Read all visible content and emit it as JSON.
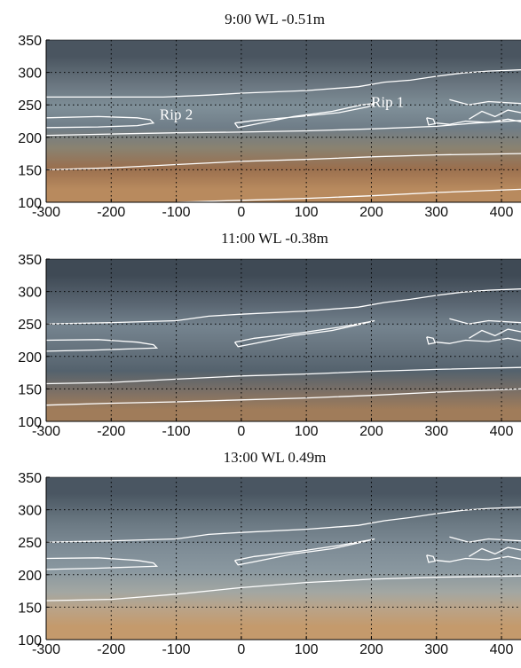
{
  "figure": {
    "background": "#ffffff",
    "contour_color": "#ffffff",
    "grid_color": "#000000"
  },
  "chart_data": [
    {
      "type": "image-contour",
      "title": "9:00  WL -0.51m",
      "xlabel": "",
      "ylabel": "",
      "xlim": [
        -300,
        430
      ],
      "ylim": [
        100,
        350
      ],
      "xticks": [
        -300,
        -200,
        -100,
        0,
        100,
        200,
        300,
        400
      ],
      "yticks": [
        100,
        150,
        200,
        250,
        300,
        350
      ],
      "grid": true,
      "annotations": [
        {
          "text": "Rip 2",
          "x": -100,
          "y": 228
        },
        {
          "text": "Rip 1",
          "x": 225,
          "y": 247
        }
      ],
      "photo_bands": [
        {
          "y0": 350,
          "y1": 300,
          "color": "#4a5560"
        },
        {
          "y0": 300,
          "y1": 262,
          "color": "#6a7680"
        },
        {
          "y0": 262,
          "y1": 230,
          "color": "#7f8f98"
        },
        {
          "y0": 230,
          "y1": 200,
          "color": "#6f7d88"
        },
        {
          "y0": 200,
          "y1": 165,
          "color": "#8a8270"
        },
        {
          "y0": 165,
          "y1": 140,
          "color": "#9a6f4e"
        },
        {
          "y0": 140,
          "y1": 100,
          "color": "#b88a5e"
        }
      ],
      "contours": [
        {
          "points": [
            [
              -300,
              262
            ],
            [
              -200,
              262
            ],
            [
              -120,
              262
            ],
            [
              -50,
              265
            ],
            [
              0,
              268
            ],
            [
              100,
              272
            ],
            [
              180,
              278
            ],
            [
              220,
              285
            ],
            [
              260,
              288
            ],
            [
              300,
              294
            ],
            [
              340,
              299
            ],
            [
              380,
              302
            ],
            [
              430,
              304
            ]
          ]
        },
        {
          "points": [
            [
              -300,
              230
            ],
            [
              -220,
              232
            ],
            [
              -160,
              230
            ],
            [
              -140,
              227
            ],
            [
              -135,
              222
            ],
            [
              -160,
              218
            ],
            [
              -220,
              216
            ],
            [
              -300,
              215
            ]
          ]
        },
        {
          "points": [
            [
              -10,
              222
            ],
            [
              20,
              226
            ],
            [
              90,
              232
            ],
            [
              150,
              238
            ],
            [
              195,
              247
            ],
            [
              205,
              252
            ],
            [
              185,
              250
            ],
            [
              140,
              240
            ],
            [
              80,
              232
            ],
            [
              20,
              220
            ],
            [
              -5,
              215
            ],
            [
              -10,
              222
            ]
          ]
        },
        {
          "points": [
            [
              -300,
              203
            ],
            [
              -200,
              205
            ],
            [
              -100,
              207
            ],
            [
              0,
              208
            ],
            [
              100,
              210
            ],
            [
              200,
              213
            ],
            [
              300,
              217
            ],
            [
              360,
              222
            ],
            [
              430,
              226
            ]
          ]
        },
        {
          "points": [
            [
              -300,
              150
            ],
            [
              -200,
              153
            ],
            [
              -100,
              158
            ],
            [
              0,
              163
            ],
            [
              100,
              166
            ],
            [
              200,
              170
            ],
            [
              300,
              173
            ],
            [
              430,
              175
            ]
          ]
        },
        {
          "points": [
            [
              -100,
              100
            ],
            [
              0,
              103
            ],
            [
              100,
              106
            ],
            [
              200,
              110
            ],
            [
              300,
              115
            ],
            [
              430,
              120
            ]
          ]
        },
        {
          "points": [
            [
              320,
              258
            ],
            [
              350,
              250
            ],
            [
              380,
              255
            ],
            [
              430,
              252
            ]
          ]
        },
        {
          "points": [
            [
              350,
              228
            ],
            [
              370,
              240
            ],
            [
              390,
              232
            ],
            [
              410,
              242
            ],
            [
              430,
              238
            ]
          ]
        },
        {
          "points": [
            [
              300,
              222
            ],
            [
              320,
              220
            ],
            [
              345,
              225
            ],
            [
              380,
              223
            ],
            [
              410,
              228
            ],
            [
              430,
              224
            ]
          ]
        },
        {
          "points": [
            [
              285,
              230
            ],
            [
              295,
              228
            ],
            [
              298,
              221
            ],
            [
              288,
              219
            ],
            [
              285,
              230
            ]
          ]
        }
      ]
    },
    {
      "type": "image-contour",
      "title": "11:00  WL -0.38m",
      "xlabel": "",
      "ylabel": "",
      "xlim": [
        -300,
        430
      ],
      "ylim": [
        100,
        350
      ],
      "xticks": [
        -300,
        -200,
        -100,
        0,
        100,
        200,
        300,
        400
      ],
      "yticks": [
        100,
        150,
        200,
        250,
        300,
        350
      ],
      "grid": true,
      "annotations": [],
      "photo_bands": [
        {
          "y0": 350,
          "y1": 300,
          "color": "#3f4a55"
        },
        {
          "y0": 300,
          "y1": 262,
          "color": "#5a6672"
        },
        {
          "y0": 262,
          "y1": 228,
          "color": "#74838e"
        },
        {
          "y0": 228,
          "y1": 195,
          "color": "#66737e"
        },
        {
          "y0": 195,
          "y1": 160,
          "color": "#54626d"
        },
        {
          "y0": 160,
          "y1": 135,
          "color": "#7a6f66"
        },
        {
          "y0": 135,
          "y1": 100,
          "color": "#a07c5a"
        }
      ],
      "contours": [
        {
          "points": [
            [
              -300,
              250
            ],
            [
              -200,
              252
            ],
            [
              -100,
              255
            ],
            [
              -50,
              262
            ],
            [
              0,
              265
            ],
            [
              100,
              270
            ],
            [
              180,
              276
            ],
            [
              220,
              283
            ],
            [
              260,
              288
            ],
            [
              300,
              294
            ],
            [
              340,
              299
            ],
            [
              380,
              302
            ],
            [
              430,
              304
            ]
          ]
        },
        {
          "points": [
            [
              -300,
              225
            ],
            [
              -220,
              226
            ],
            [
              -160,
              222
            ],
            [
              -135,
              218
            ],
            [
              -130,
              213
            ],
            [
              -160,
              212
            ],
            [
              -220,
              210
            ],
            [
              -300,
              208
            ]
          ]
        },
        {
          "points": [
            [
              -10,
              222
            ],
            [
              20,
              228
            ],
            [
              90,
              236
            ],
            [
              150,
              245
            ],
            [
              195,
              253
            ],
            [
              205,
              255
            ],
            [
              185,
              250
            ],
            [
              140,
              240
            ],
            [
              80,
              232
            ],
            [
              20,
              220
            ],
            [
              -5,
              215
            ],
            [
              -10,
              222
            ]
          ]
        },
        {
          "points": [
            [
              -300,
              158
            ],
            [
              -200,
              160
            ],
            [
              -100,
              165
            ],
            [
              0,
              170
            ],
            [
              100,
              173
            ],
            [
              200,
              177
            ],
            [
              300,
              180
            ],
            [
              430,
              183
            ]
          ]
        },
        {
          "points": [
            [
              -300,
              125
            ],
            [
              -200,
              128
            ],
            [
              -100,
              130
            ],
            [
              0,
              133
            ],
            [
              100,
              136
            ],
            [
              200,
              140
            ],
            [
              300,
              145
            ],
            [
              430,
              150
            ]
          ]
        },
        {
          "points": [
            [
              320,
              258
            ],
            [
              350,
              250
            ],
            [
              380,
              255
            ],
            [
              430,
              252
            ]
          ]
        },
        {
          "points": [
            [
              350,
              228
            ],
            [
              370,
              240
            ],
            [
              390,
              232
            ],
            [
              410,
              242
            ],
            [
              430,
              238
            ]
          ]
        },
        {
          "points": [
            [
              300,
              222
            ],
            [
              320,
              220
            ],
            [
              345,
              225
            ],
            [
              380,
              223
            ],
            [
              410,
              228
            ],
            [
              430,
              224
            ]
          ]
        },
        {
          "points": [
            [
              285,
              230
            ],
            [
              295,
              228
            ],
            [
              298,
              221
            ],
            [
              288,
              219
            ],
            [
              285,
              230
            ]
          ]
        }
      ]
    },
    {
      "type": "image-contour",
      "title": "13:00  WL 0.49m",
      "xlabel": "",
      "ylabel": "",
      "xlim": [
        -300,
        430
      ],
      "ylim": [
        100,
        350
      ],
      "xticks": [
        -300,
        -200,
        -100,
        0,
        100,
        200,
        300,
        400
      ],
      "yticks": [
        100,
        150,
        200,
        250,
        300,
        350
      ],
      "grid": true,
      "annotations": [],
      "photo_bands": [
        {
          "y0": 350,
          "y1": 300,
          "color": "#4a5662"
        },
        {
          "y0": 300,
          "y1": 262,
          "color": "#6a7882"
        },
        {
          "y0": 262,
          "y1": 225,
          "color": "#7d8b95"
        },
        {
          "y0": 225,
          "y1": 185,
          "color": "#8a98a0"
        },
        {
          "y0": 185,
          "y1": 160,
          "color": "#a3a7a2"
        },
        {
          "y0": 160,
          "y1": 140,
          "color": "#b9a48a"
        },
        {
          "y0": 140,
          "y1": 100,
          "color": "#c49a6c"
        }
      ],
      "contours": [
        {
          "points": [
            [
              -300,
              250
            ],
            [
              -200,
              252
            ],
            [
              -100,
              255
            ],
            [
              -50,
              262
            ],
            [
              0,
              265
            ],
            [
              100,
              270
            ],
            [
              180,
              276
            ],
            [
              220,
              283
            ],
            [
              260,
              288
            ],
            [
              300,
              294
            ],
            [
              340,
              299
            ],
            [
              380,
              302
            ],
            [
              430,
              304
            ]
          ]
        },
        {
          "points": [
            [
              -300,
              225
            ],
            [
              -220,
              226
            ],
            [
              -160,
              222
            ],
            [
              -135,
              218
            ],
            [
              -130,
              213
            ],
            [
              -160,
              212
            ],
            [
              -220,
              210
            ],
            [
              -300,
              208
            ]
          ]
        },
        {
          "points": [
            [
              -10,
              222
            ],
            [
              20,
              228
            ],
            [
              90,
              236
            ],
            [
              150,
              245
            ],
            [
              195,
              253
            ],
            [
              205,
              255
            ],
            [
              185,
              250
            ],
            [
              140,
              240
            ],
            [
              80,
              232
            ],
            [
              20,
              220
            ],
            [
              -5,
              215
            ],
            [
              -10,
              222
            ]
          ]
        },
        {
          "points": [
            [
              -300,
              160
            ],
            [
              -200,
              162
            ],
            [
              -100,
              170
            ],
            [
              0,
              180
            ],
            [
              100,
              188
            ],
            [
              200,
              193
            ],
            [
              300,
              196
            ],
            [
              430,
              198
            ]
          ]
        },
        {
          "points": [
            [
              320,
              258
            ],
            [
              350,
              250
            ],
            [
              380,
              255
            ],
            [
              430,
              252
            ]
          ]
        },
        {
          "points": [
            [
              350,
              228
            ],
            [
              370,
              240
            ],
            [
              390,
              232
            ],
            [
              410,
              242
            ],
            [
              430,
              238
            ]
          ]
        },
        {
          "points": [
            [
              300,
              222
            ],
            [
              320,
              220
            ],
            [
              345,
              225
            ],
            [
              380,
              223
            ],
            [
              410,
              228
            ],
            [
              430,
              224
            ]
          ]
        },
        {
          "points": [
            [
              285,
              230
            ],
            [
              295,
              228
            ],
            [
              298,
              221
            ],
            [
              288,
              219
            ],
            [
              285,
              230
            ]
          ]
        }
      ]
    }
  ]
}
